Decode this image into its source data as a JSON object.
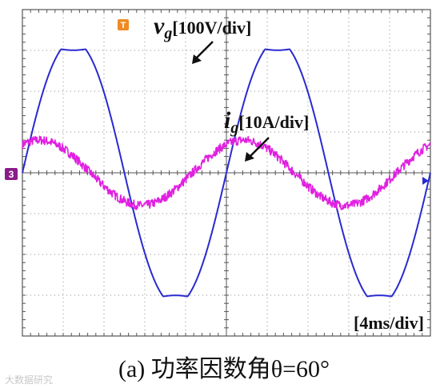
{
  "figure": {
    "caption": "(a)  功率因数角θ=60°",
    "watermark": "大数据研究"
  },
  "chart_data": {
    "type": "line",
    "title": "",
    "x_scale_label": "[4ms/div]",
    "x_range_divisions": [
      0,
      10
    ],
    "y_range_divisions": [
      -4,
      4
    ],
    "grid": true,
    "channel_marker": "3",
    "trigger_marker": "T",
    "series": [
      {
        "name": "vg",
        "label_main": "v",
        "label_sub": "g",
        "label_scale": "[100V/div]",
        "color": "#2a2ad0",
        "scale_per_div": 100,
        "unit": "V",
        "amplitude_div": 3.05,
        "period_div": 5,
        "phase_deg": 0
      },
      {
        "name": "ig",
        "label_main": "i",
        "label_sub": "g",
        "label_scale": "[10A/div]",
        "color": "#e020e0",
        "scale_per_div": 10,
        "unit": "A",
        "amplitude_div": 0.8,
        "period_div": 5,
        "phase_deg": 60
      }
    ]
  }
}
